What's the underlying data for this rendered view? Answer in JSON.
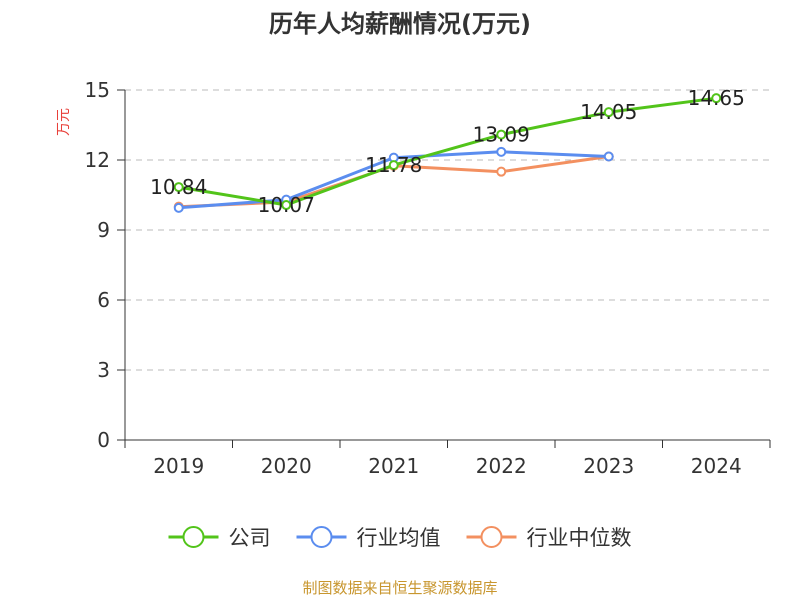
{
  "chart_data": {
    "type": "line",
    "title": "历年人均薪酬情况(万元)",
    "ylabel": "万元",
    "xlabel": "",
    "categories": [
      "2019",
      "2020",
      "2021",
      "2022",
      "2023",
      "2024"
    ],
    "ylim": [
      0,
      15
    ],
    "yticks": [
      0,
      3,
      6,
      9,
      12,
      15
    ],
    "grid": true,
    "legend_position": "bottom",
    "series": [
      {
        "name": "公司",
        "color": "#52c41a",
        "values": [
          10.84,
          10.07,
          11.78,
          13.09,
          14.05,
          14.65
        ],
        "labels": [
          "10.84",
          "10.07",
          "11.78",
          "13.09",
          "14.05",
          "14.65"
        ]
      },
      {
        "name": "行业均值",
        "color": "#5b8def",
        "values": [
          9.95,
          10.3,
          12.1,
          12.35,
          12.15,
          null
        ]
      },
      {
        "name": "行业中位数",
        "color": "#f39060",
        "values": [
          10.0,
          10.2,
          11.75,
          11.5,
          12.15,
          null
        ]
      }
    ]
  },
  "source_note": "制图数据来自恒生聚源数据库"
}
